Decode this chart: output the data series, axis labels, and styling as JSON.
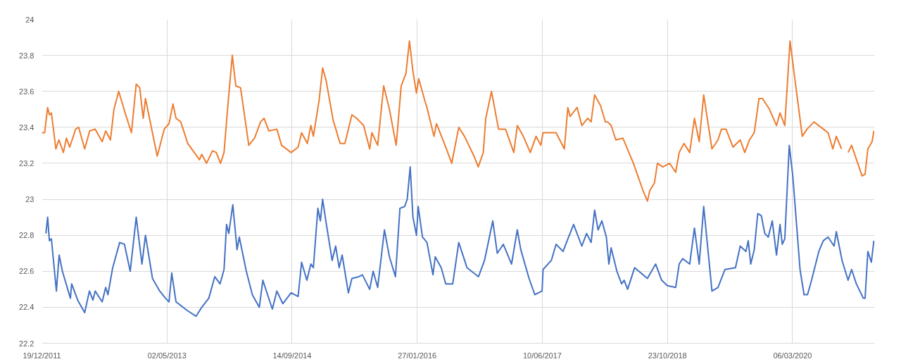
{
  "chart_data": {
    "type": "line",
    "xlim": [
      "2011-12-19",
      "2021-01-28"
    ],
    "xticks": [
      {
        "value": "2011-12-19",
        "label": "19/12/2011"
      },
      {
        "value": "2013-05-02",
        "label": "02/05/2013"
      },
      {
        "value": "2014-09-14",
        "label": "14/09/2014"
      },
      {
        "value": "2016-01-27",
        "label": "27/01/2016"
      },
      {
        "value": "2017-06-10",
        "label": "10/06/2017"
      },
      {
        "value": "2018-10-23",
        "label": "23/10/2018"
      },
      {
        "value": "2020-03-06",
        "label": "06/03/2020"
      }
    ],
    "ylim": [
      22.2,
      24
    ],
    "yticks": [
      22.2,
      22.4,
      22.6,
      22.8,
      23,
      23.2,
      23.4,
      23.6,
      23.8,
      24
    ],
    "grid": true,
    "series": [
      {
        "color": "#ed7d31",
        "x": [
          "2011-12-19",
          "2011-12-30",
          "2012-01-11",
          "2012-01-18",
          "2012-01-26",
          "2012-02-13",
          "2012-02-25",
          "2012-03-14",
          "2012-03-26",
          "2012-04-08",
          "2012-05-02",
          "2012-05-14",
          "2012-06-07",
          "2012-06-27",
          "2012-07-19",
          "2012-08-16",
          "2012-08-30",
          "2012-09-18",
          "2012-10-02",
          "2012-10-21",
          "2012-11-18",
          "2012-12-11",
          "2012-12-30",
          "2013-01-13",
          "2013-01-27",
          "2013-02-05",
          "2013-03-24",
          "2013-04-21",
          "2013-05-10",
          "2013-05-26",
          "2013-06-07",
          "2013-06-26",
          "2013-07-24",
          "2013-09-09",
          "2013-09-18",
          "2013-10-07",
          "2013-10-31",
          "2013-11-15",
          "2013-12-02",
          "2013-12-16",
          "2013-12-30",
          "2014-01-18",
          "2014-02-01",
          "2014-02-20",
          "2014-03-25",
          "2014-04-17",
          "2014-05-11",
          "2014-05-25",
          "2014-06-13",
          "2014-07-15",
          "2014-08-03",
          "2014-09-10",
          "2014-10-08",
          "2014-10-22",
          "2014-11-14",
          "2014-11-28",
          "2014-12-08",
          "2014-12-31",
          "2015-01-14",
          "2015-01-28",
          "2015-02-25",
          "2015-03-25",
          "2015-04-13",
          "2015-05-11",
          "2015-05-30",
          "2015-06-27",
          "2015-07-21",
          "2015-07-30",
          "2015-08-22",
          "2015-09-15",
          "2015-10-08",
          "2015-11-04",
          "2015-11-24",
          "2015-12-13",
          "2015-12-27",
          "2016-01-10",
          "2016-01-24",
          "2016-02-02",
          "2016-02-26",
          "2016-03-06",
          "2016-04-03",
          "2016-04-13",
          "2016-05-20",
          "2016-06-13",
          "2016-07-11",
          "2016-08-03",
          "2016-09-10",
          "2016-09-27",
          "2016-10-17",
          "2016-10-27",
          "2016-11-19",
          "2016-12-17",
          "2017-01-14",
          "2017-02-16",
          "2017-03-02",
          "2017-03-26",
          "2017-04-23",
          "2017-05-16",
          "2017-06-04",
          "2017-06-13",
          "2017-08-04",
          "2017-09-06",
          "2017-09-20",
          "2017-09-29",
          "2017-10-27",
          "2017-11-15",
          "2017-12-08",
          "2017-12-22",
          "2018-01-05",
          "2018-01-29",
          "2018-02-17",
          "2018-02-26",
          "2018-03-12",
          "2018-03-31",
          "2018-04-28",
          "2018-06-09",
          "2018-07-17",
          "2018-08-04",
          "2018-08-14",
          "2018-09-01",
          "2018-09-13",
          "2018-10-04",
          "2018-11-01",
          "2018-11-25",
          "2018-12-09",
          "2018-12-28",
          "2019-01-20",
          "2019-02-08",
          "2019-02-27",
          "2019-03-17",
          "2019-04-19",
          "2019-05-13",
          "2019-05-27",
          "2019-06-14",
          "2019-07-12",
          "2019-08-10",
          "2019-08-28",
          "2019-09-16",
          "2019-10-05",
          "2019-10-24",
          "2019-11-07",
          "2019-12-05",
          "2020-01-02",
          "2020-01-16",
          "2020-02-04",
          "2020-02-25",
          "2020-03-17",
          "2020-04-14",
          "2020-05-03",
          "2020-05-31",
          "2020-07-07",
          "2020-07-26",
          "2020-08-14",
          "2020-08-28",
          "2020-09-18",
          "2020-10-01",
          "2020-10-14",
          "2020-10-28",
          "2020-12-09",
          "2020-12-21",
          "2021-01-01",
          "2021-01-18",
          "2021-01-25"
        ],
        "values": [
          23.37,
          23.37,
          23.51,
          23.47,
          23.48,
          23.28,
          23.33,
          23.26,
          23.34,
          23.29,
          23.39,
          23.4,
          23.28,
          23.38,
          23.39,
          23.32,
          23.38,
          23.33,
          23.5,
          23.6,
          23.47,
          23.37,
          23.64,
          23.62,
          23.45,
          23.56,
          23.24,
          23.39,
          23.42,
          23.53,
          23.45,
          23.43,
          23.31,
          23.22,
          23.25,
          23.2,
          23.27,
          23.26,
          23.2,
          23.26,
          23.5,
          23.8,
          23.63,
          23.62,
          23.3,
          23.34,
          23.43,
          23.45,
          23.38,
          23.39,
          23.3,
          23.26,
          23.29,
          23.37,
          23.31,
          23.41,
          23.35,
          23.55,
          23.73,
          23.66,
          23.44,
          23.31,
          23.31,
          23.47,
          23.45,
          23.41,
          23.28,
          23.37,
          23.3,
          23.63,
          23.5,
          23.3,
          23.63,
          23.7,
          23.88,
          23.71,
          23.59,
          23.67,
          23.55,
          23.51,
          23.35,
          23.42,
          23.29,
          23.2,
          23.4,
          23.35,
          23.24,
          23.18,
          23.26,
          23.45,
          23.6,
          23.39,
          23.39,
          23.26,
          23.41,
          23.35,
          23.26,
          23.35,
          23.3,
          23.37,
          23.37,
          23.28,
          23.51,
          23.46,
          23.51,
          23.41,
          23.45,
          23.43,
          23.58,
          23.52,
          23.43,
          23.43,
          23.41,
          23.33,
          23.34,
          23.2,
          23.05,
          22.99,
          23.05,
          23.09,
          23.2,
          23.18,
          23.2,
          23.15,
          23.26,
          23.31,
          23.26,
          23.45,
          23.32,
          23.58,
          23.28,
          23.33,
          23.39,
          23.39,
          23.29,
          23.33,
          23.26,
          23.33,
          23.37,
          23.56,
          23.56,
          23.5,
          23.41,
          23.48,
          23.41,
          23.88,
          23.65,
          23.35,
          23.39,
          23.43,
          23.39,
          23.37,
          23.28,
          23.35,
          23.28,
          null,
          23.26,
          23.3,
          23.13,
          23.14,
          23.28,
          23.32,
          23.38
        ]
      },
      {
        "color": "#4472c4",
        "x": [
          "2012-01-04",
          "2012-01-11",
          "2012-01-18",
          "2012-01-26",
          "2012-02-15",
          "2012-02-26",
          "2012-03-10",
          "2012-04-11",
          "2012-04-16",
          "2012-05-10",
          "2012-06-07",
          "2012-06-26",
          "2012-07-10",
          "2012-07-19",
          "2012-08-16",
          "2012-08-30",
          "2012-09-08",
          "2012-09-27",
          "2012-10-25",
          "2012-11-13",
          "2012-12-06",
          "2012-12-30",
          "2013-01-22",
          "2013-02-05",
          "2013-03-05",
          "2013-04-03",
          "2013-04-26",
          "2013-05-10",
          "2013-05-21",
          "2013-06-07",
          "2013-07-24",
          "2013-08-26",
          "2013-09-18",
          "2013-10-16",
          "2013-11-09",
          "2013-11-30",
          "2013-12-16",
          "2013-12-26",
          "2014-01-04",
          "2014-01-20",
          "2014-02-06",
          "2014-02-15",
          "2014-03-15",
          "2014-04-08",
          "2014-05-06",
          "2014-05-20",
          "2014-06-08",
          "2014-06-27",
          "2014-07-15",
          "2014-08-08",
          "2014-09-10",
          "2014-10-08",
          "2014-10-22",
          "2014-11-12",
          "2014-11-28",
          "2014-12-08",
          "2014-12-26",
          "2015-01-05",
          "2015-01-14",
          "2015-01-28",
          "2015-02-21",
          "2015-03-07",
          "2015-03-21",
          "2015-04-02",
          "2015-04-27",
          "2015-05-11",
          "2015-06-08",
          "2015-06-22",
          "2015-07-21",
          "2015-08-04",
          "2015-08-22",
          "2015-09-18",
          "2015-10-08",
          "2015-11-01",
          "2015-11-19",
          "2015-12-08",
          "2015-12-18",
          "2015-12-30",
          "2016-01-10",
          "2016-01-24",
          "2016-01-31",
          "2016-02-17",
          "2016-03-06",
          "2016-03-30",
          "2016-04-08",
          "2016-05-02",
          "2016-05-20",
          "2016-06-17",
          "2016-07-11",
          "2016-08-13",
          "2016-09-28",
          "2016-10-22",
          "2016-11-24",
          "2016-12-12",
          "2017-01-05",
          "2017-02-07",
          "2017-03-02",
          "2017-03-16",
          "2017-04-18",
          "2017-05-11",
          "2017-06-09",
          "2017-06-13",
          "2017-07-16",
          "2017-08-04",
          "2017-09-01",
          "2017-09-20",
          "2017-10-13",
          "2017-11-15",
          "2017-12-04",
          "2017-12-22",
          "2018-01-05",
          "2018-01-19",
          "2018-02-03",
          "2018-02-21",
          "2018-03-03",
          "2018-03-12",
          "2018-04-04",
          "2018-04-23",
          "2018-05-03",
          "2018-05-17",
          "2018-06-14",
          "2018-08-04",
          "2018-09-06",
          "2018-09-30",
          "2018-10-23",
          "2018-11-25",
          "2018-12-09",
          "2018-12-23",
          "2019-01-20",
          "2019-02-08",
          "2019-02-27",
          "2019-03-17",
          "2019-04-19",
          "2019-05-13",
          "2019-06-10",
          "2019-07-22",
          "2019-08-10",
          "2019-09-02",
          "2019-09-11",
          "2019-09-21",
          "2019-10-05",
          "2019-10-19",
          "2019-11-02",
          "2019-11-16",
          "2019-11-30",
          "2019-12-16",
          "2020-01-02",
          "2020-01-16",
          "2020-01-25",
          "2020-02-04",
          "2020-02-22",
          "2020-03-07",
          "2020-04-05",
          "2020-04-21",
          "2020-05-05",
          "2020-05-21",
          "2020-06-19",
          "2020-07-07",
          "2020-07-26",
          "2020-08-19",
          "2020-08-28",
          "2020-09-20",
          "2020-10-14",
          "2020-10-28",
          "2020-11-16",
          "2020-12-14",
          "2020-12-21",
          "2021-01-01",
          "2021-01-15",
          "2021-01-25"
        ],
        "values": [
          22.81,
          22.9,
          22.77,
          22.78,
          22.49,
          22.69,
          22.6,
          22.45,
          22.53,
          22.44,
          22.37,
          22.49,
          22.44,
          22.49,
          22.43,
          22.51,
          22.47,
          22.62,
          22.76,
          22.75,
          22.6,
          22.9,
          22.64,
          22.8,
          22.56,
          22.49,
          22.45,
          22.43,
          22.59,
          22.43,
          22.38,
          22.35,
          22.4,
          22.45,
          22.57,
          22.53,
          22.61,
          22.86,
          22.81,
          22.97,
          22.72,
          22.79,
          22.6,
          22.47,
          22.4,
          22.55,
          22.47,
          22.39,
          22.49,
          22.42,
          22.48,
          22.46,
          22.65,
          22.55,
          22.64,
          22.62,
          22.95,
          22.88,
          23.0,
          22.87,
          22.66,
          22.74,
          22.62,
          22.69,
          22.48,
          22.56,
          22.57,
          22.58,
          22.5,
          22.6,
          22.51,
          22.83,
          22.68,
          22.57,
          22.95,
          22.96,
          23.0,
          23.18,
          22.9,
          22.8,
          22.96,
          22.79,
          22.76,
          22.58,
          22.68,
          22.62,
          22.53,
          22.53,
          22.76,
          22.62,
          22.57,
          22.66,
          22.88,
          22.7,
          22.75,
          22.64,
          22.83,
          22.72,
          22.56,
          22.47,
          22.49,
          22.61,
          22.66,
          22.75,
          22.71,
          22.78,
          22.86,
          22.74,
          22.81,
          22.76,
          22.94,
          22.83,
          22.88,
          22.79,
          22.64,
          22.73,
          22.6,
          22.53,
          22.55,
          22.5,
          22.62,
          22.56,
          22.64,
          22.55,
          22.52,
          22.51,
          22.64,
          22.67,
          22.64,
          22.84,
          22.64,
          22.96,
          22.49,
          22.51,
          22.61,
          22.62,
          22.74,
          22.71,
          22.77,
          22.64,
          22.72,
          22.92,
          22.91,
          22.81,
          22.79,
          22.88,
          22.69,
          22.86,
          22.75,
          22.78,
          23.3,
          23.13,
          22.61,
          22.47,
          22.47,
          22.55,
          22.71,
          22.77,
          22.79,
          22.74,
          22.82,
          22.66,
          22.55,
          22.61,
          22.53,
          22.45,
          22.45,
          22.71,
          22.65,
          22.77
        ]
      }
    ]
  }
}
